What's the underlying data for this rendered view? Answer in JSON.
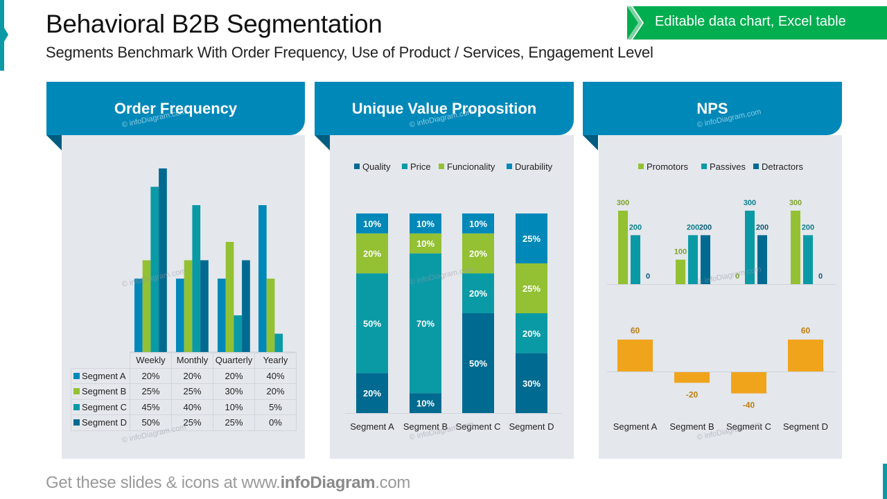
{
  "header": {
    "title": "Behavioral B2B Segmentation",
    "subtitle": "Segments Benchmark With Order Frequency, Use of Product / Services, Engagement Level",
    "badge": "Editable data chart, Excel table"
  },
  "colors": {
    "segment_a": "#0088b9",
    "segment_b": "#93c133",
    "segment_c": "#0a9aa6",
    "segment_d": "#006a90",
    "header_blue": "#0088b9",
    "panel_bg": "#e4e7ec",
    "badge_green": "#00ad4f",
    "nps_orange": "#f0a41c"
  },
  "panels": {
    "order_frequency": {
      "title": "Order Frequency"
    },
    "uvp": {
      "title": "Unique Value Proposition"
    },
    "nps": {
      "title": "NPS"
    }
  },
  "watermark": "© infoDiagram.com",
  "footer": {
    "prefix": "Get these slides & icons at www.",
    "brand": "infoDiagram",
    "suffix": ".com"
  },
  "chart_data": [
    {
      "id": "order_frequency",
      "type": "bar",
      "title": "Order Frequency",
      "categories": [
        "Weekly",
        "Monthly",
        "Quarterly",
        "Yearly"
      ],
      "series": [
        {
          "name": "Segment A",
          "color": "#0088b9",
          "values": [
            20,
            20,
            20,
            40
          ],
          "labels": [
            "20%",
            "20%",
            "20%",
            "40%"
          ]
        },
        {
          "name": "Segment B",
          "color": "#93c133",
          "values": [
            25,
            25,
            30,
            20
          ],
          "labels": [
            "25%",
            "25%",
            "30%",
            "20%"
          ]
        },
        {
          "name": "Segment C",
          "color": "#0a9aa6",
          "values": [
            45,
            40,
            10,
            5
          ],
          "labels": [
            "45%",
            "40%",
            "10%",
            "5%"
          ]
        },
        {
          "name": "Segment D",
          "color": "#006a90",
          "values": [
            50,
            25,
            25,
            0
          ],
          "labels": [
            "50%",
            "25%",
            "25%",
            "0%"
          ]
        }
      ],
      "ylim": [
        0,
        50
      ],
      "legend": "data-table-below",
      "grid": false
    },
    {
      "id": "uvp",
      "type": "bar",
      "stacked": true,
      "title": "Unique Value Proposition",
      "categories": [
        "Segment A",
        "Segment B",
        "Segment C",
        "Segment D"
      ],
      "series": [
        {
          "name": "Quality",
          "color": "#006a90",
          "values": [
            20,
            10,
            50,
            30
          ]
        },
        {
          "name": "Price",
          "color": "#0a9aa6",
          "values": [
            50,
            70,
            20,
            20
          ]
        },
        {
          "name": "Funcionality",
          "color": "#93c133",
          "values": [
            20,
            10,
            20,
            25
          ]
        },
        {
          "name": "Durability",
          "color": "#0088b9",
          "values": [
            10,
            10,
            10,
            25
          ]
        }
      ],
      "ylim": [
        0,
        100
      ],
      "legend": "top",
      "grid": false
    },
    {
      "id": "nps_breakdown",
      "type": "bar",
      "title": "NPS",
      "categories": [
        "Segment A",
        "Segment B",
        "Segment C",
        "Segment D"
      ],
      "series": [
        {
          "name": "Promotors",
          "color": "#93c133",
          "label_color": "#7ea22a",
          "values": [
            300,
            100,
            0,
            300
          ]
        },
        {
          "name": "Passives",
          "color": "#0a9aa6",
          "label_color": "#0a7f8a",
          "values": [
            200,
            200,
            300,
            200
          ]
        },
        {
          "name": "Detractors",
          "color": "#006a90",
          "label_color": "#0b5a78",
          "values": [
            0,
            200,
            200,
            0
          ]
        }
      ],
      "ylim": [
        0,
        300
      ],
      "legend": "top",
      "grid": false
    },
    {
      "id": "nps_score",
      "type": "bar",
      "categories": [
        "Segment A",
        "Segment B",
        "Segment C",
        "Segment D"
      ],
      "series": [
        {
          "name": "NPS",
          "color": "#f0a41c",
          "label_color": "#c07d10",
          "values": [
            60,
            -20,
            -40,
            60
          ]
        }
      ],
      "ylim": [
        -40,
        60
      ],
      "legend": "none",
      "grid": false
    }
  ]
}
